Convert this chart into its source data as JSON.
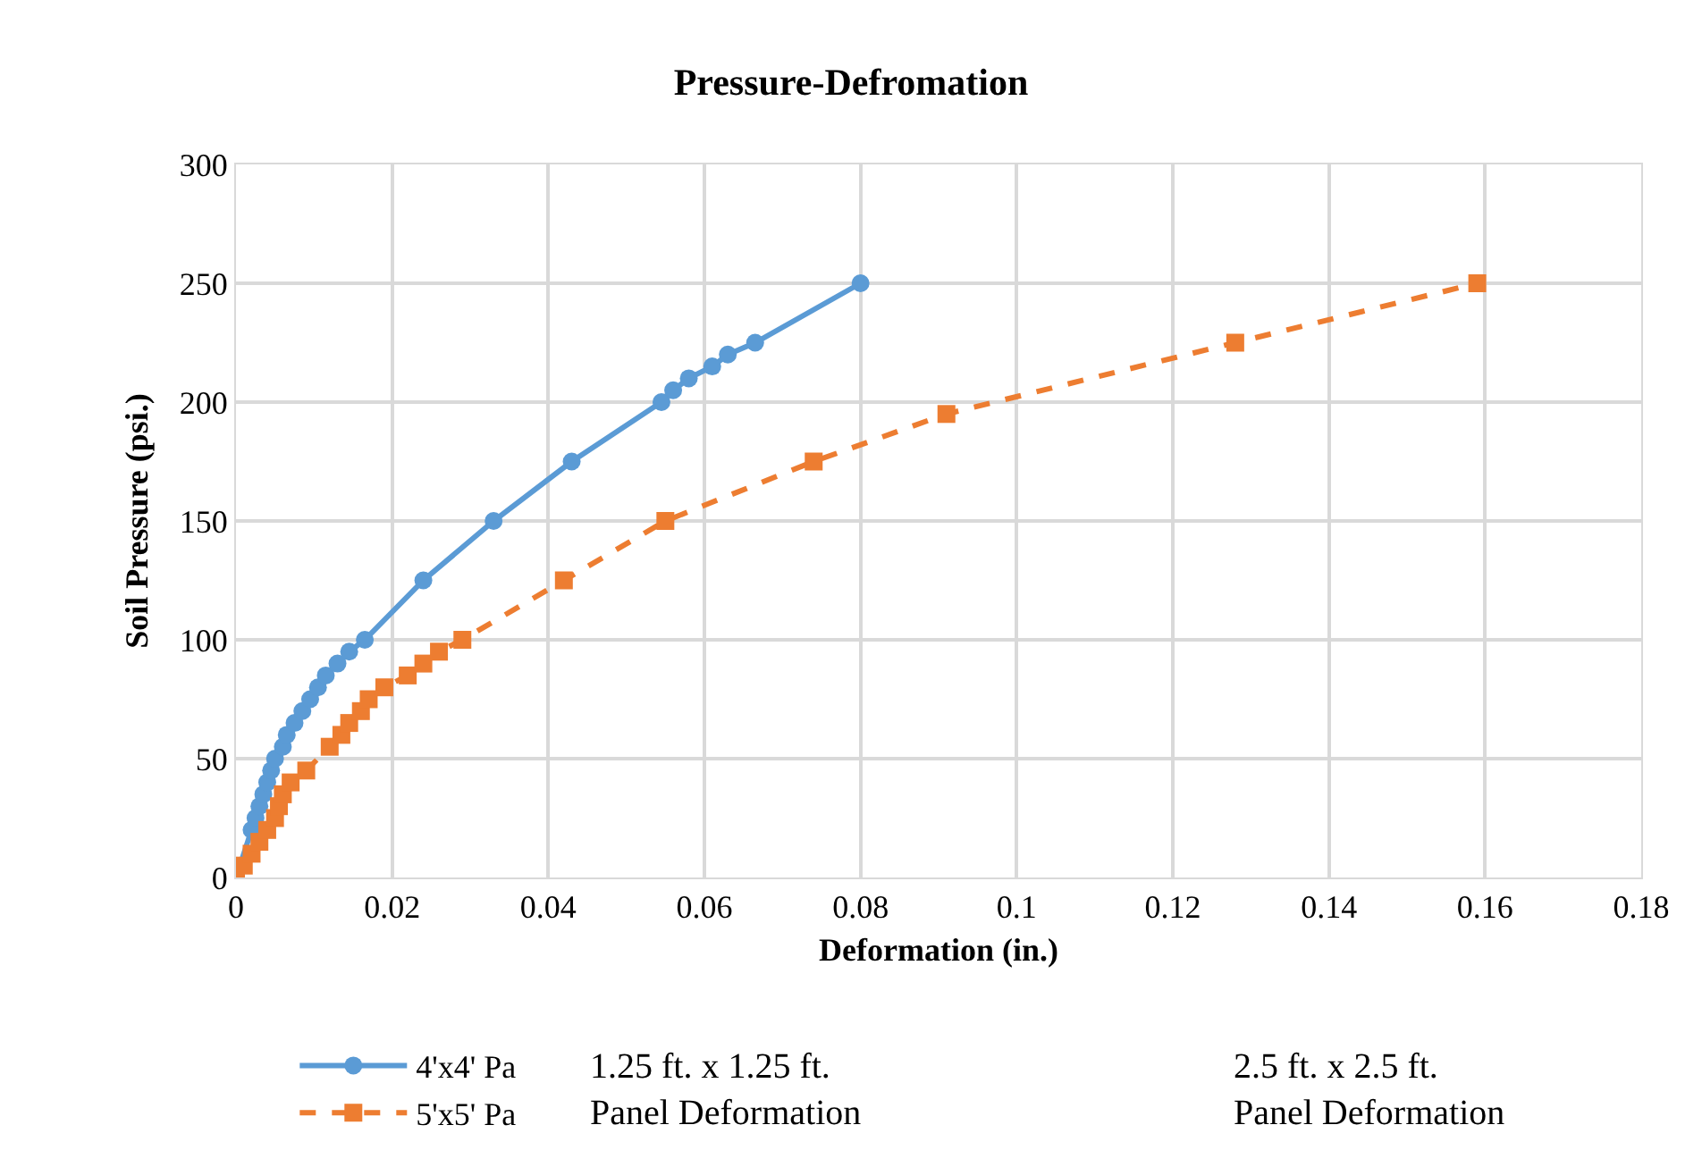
{
  "chart_data": {
    "type": "line",
    "title": "Pressure-Defromation",
    "xlabel": "Deformation (in.)",
    "ylabel": "Soil Pressure (psi.)",
    "xlim": [
      0,
      0.18
    ],
    "xticks": [
      0,
      0.02,
      0.04,
      0.06,
      0.08,
      0.1,
      0.12,
      0.14,
      0.16,
      0.18
    ],
    "ylim": [
      0,
      300
    ],
    "yticks": [
      0,
      50,
      100,
      150,
      200,
      250,
      300
    ],
    "grid": true,
    "legend": "bottom",
    "series": [
      {
        "name": "4'x4' Pa",
        "color": "#5b9bd5",
        "marker": "circle",
        "line_style": "solid",
        "x": [
          0,
          0.002,
          0.0025,
          0.003,
          0.0035,
          0.004,
          0.0045,
          0.005,
          0.006,
          0.0065,
          0.0075,
          0.0085,
          0.0095,
          0.0105,
          0.0115,
          0.013,
          0.0145,
          0.0165,
          0.024,
          0.033,
          0.043,
          0.0545,
          0.056,
          0.058,
          0.061,
          0.063,
          0.0665,
          0.08
        ],
        "values": [
          0,
          20,
          25,
          30,
          35,
          40,
          45,
          50,
          55,
          60,
          65,
          70,
          75,
          80,
          85,
          90,
          95,
          100,
          125,
          150,
          175,
          200,
          205,
          210,
          215,
          220,
          225,
          250
        ]
      },
      {
        "name": "5'x5' Pa",
        "color": "#ed7d31",
        "marker": "square",
        "line_style": "dashed",
        "x": [
          0,
          0.001,
          0.002,
          0.003,
          0.004,
          0.005,
          0.0055,
          0.006,
          0.007,
          0.009,
          0.012,
          0.0135,
          0.0145,
          0.016,
          0.017,
          0.019,
          0.022,
          0.024,
          0.026,
          0.029,
          0.042,
          0.055,
          0.074,
          0.091,
          0.128,
          0.159
        ],
        "values": [
          0,
          5,
          10,
          15,
          20,
          25,
          30,
          35,
          40,
          45,
          55,
          60,
          65,
          70,
          75,
          80,
          85,
          90,
          95,
          100,
          125,
          150,
          175,
          195,
          225,
          250
        ]
      }
    ],
    "annotations": [
      "1.25 ft. x 1.25 ft.\nPanel Deformation",
      "2.5 ft. x 2.5 ft.\nPanel Deformation"
    ]
  }
}
